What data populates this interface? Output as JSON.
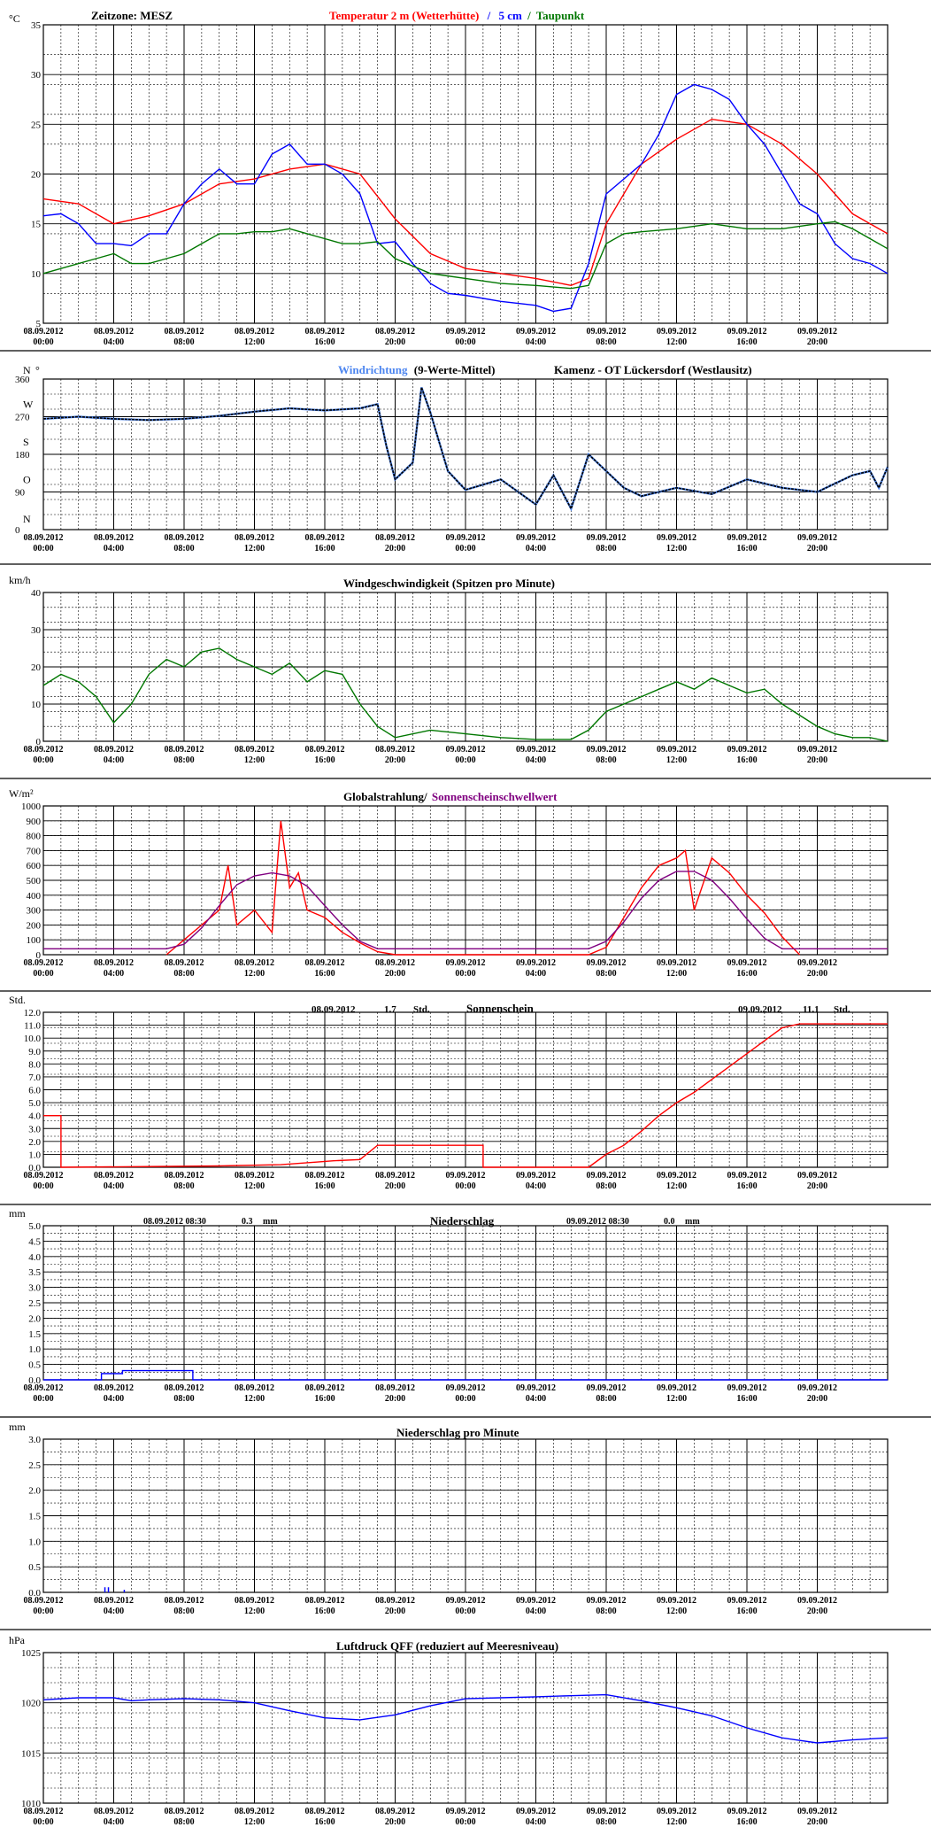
{
  "x_ticks": [
    {
      "date": "08.09.2012",
      "time": "00:00"
    },
    {
      "date": "08.09.2012",
      "time": "04:00"
    },
    {
      "date": "08.09.2012",
      "time": "08:00"
    },
    {
      "date": "08.09.2012",
      "time": "12:00"
    },
    {
      "date": "08.09.2012",
      "time": "16:00"
    },
    {
      "date": "08.09.2012",
      "time": "20:00"
    },
    {
      "date": "09.09.2012",
      "time": "00:00"
    },
    {
      "date": "09.09.2012",
      "time": "04:00"
    },
    {
      "date": "09.09.2012",
      "time": "08:00"
    },
    {
      "date": "09.09.2012",
      "time": "12:00"
    },
    {
      "date": "09.09.2012",
      "time": "16:00"
    },
    {
      "date": "09.09.2012",
      "time": "20:00"
    }
  ],
  "colors": {
    "red": "#ff0000",
    "blue": "#0000ff",
    "lightblue": "#4d86f0",
    "green": "#007700",
    "purple": "#800080",
    "black": "#000000",
    "grid": "#000000"
  },
  "header": {
    "zeitzone": "Zeitzone: MESZ",
    "title_red": "Temperatur 2 m (Wetterhütte)",
    "sep1": "/",
    "title_blue": "5 cm",
    "sep2": "/",
    "title_green": "Taupunkt",
    "wind_dir_title": "Windrichtung",
    "wind_dir_suffix": "(9-Werte-Mittel)",
    "station": "Kamenz - OT Lückersdorf (Westlausitz)",
    "wind_speed_title": "Windgeschwindigkeit (Spitzen pro Minute)",
    "radiation_title": "Globalstrahlung/",
    "radiation_title2": "Sonnenscheinschwellwert",
    "sun_title": "Sonnenschein",
    "sun_day1_date": "08.09.2012",
    "sun_day1_value": "1.7",
    "sun_day1_unit": "Std.",
    "sun_day2_date": "09.09.2012",
    "sun_day2_value": "11.1",
    "sun_day2_unit": "Std.",
    "precip_title": "Niederschlag",
    "precip_day1_label": "08.09.2012 08:30",
    "precip_day1_value": "0.3",
    "precip_day1_unit": "mm",
    "precip_day2_label": "09.09.2012 08:30",
    "precip_day2_value": "0.0",
    "precip_day2_unit": "mm",
    "precip_min_title": "Niederschlag pro Minute",
    "pressure_title": "Luftdruck QFF (reduziert auf Meeresniveau)"
  },
  "chart_data": [
    {
      "id": "temperature",
      "type": "line",
      "ylabel": "°C",
      "ylim": [
        5,
        35
      ],
      "yticks": [
        5,
        10,
        15,
        20,
        25,
        30,
        35
      ],
      "x_unit": "hours since 08.09.2012 00:00",
      "series": [
        {
          "name": "Temperatur 2 m (Wetterhütte)",
          "color": "red",
          "x": [
            0,
            2,
            4,
            6,
            8,
            10,
            12,
            14,
            16,
            18,
            20,
            22,
            24,
            26,
            28,
            30,
            31,
            32,
            34,
            36,
            38,
            40,
            42,
            44,
            46,
            48
          ],
          "y": [
            17.5,
            17,
            15,
            15.8,
            17,
            19,
            19.5,
            20.5,
            21,
            20,
            15.5,
            12,
            10.5,
            10,
            9.5,
            8.8,
            9.5,
            15,
            21,
            23.5,
            25.5,
            25,
            23,
            20,
            16,
            14
          ]
        },
        {
          "name": "5 cm",
          "color": "blue",
          "x": [
            0,
            1,
            2,
            3,
            4,
            5,
            6,
            7,
            8,
            9,
            10,
            11,
            12,
            13,
            14,
            15,
            16,
            17,
            18,
            19,
            20,
            21,
            22,
            23,
            24,
            26,
            28,
            29,
            30,
            31,
            32,
            33,
            34,
            35,
            36,
            37,
            38,
            39,
            40,
            41,
            42,
            43,
            44,
            45,
            46,
            47,
            48
          ],
          "y": [
            15.8,
            16,
            15,
            13,
            13,
            12.8,
            14,
            14,
            17,
            19,
            20.5,
            19,
            19,
            22,
            23,
            21,
            21,
            20,
            18,
            13,
            13.2,
            11,
            9,
            8,
            7.8,
            7.2,
            6.8,
            6.2,
            6.5,
            11,
            18,
            19.5,
            21,
            24,
            28,
            29,
            28.5,
            27.5,
            25,
            23,
            20,
            17,
            16,
            13,
            11.5,
            11,
            10
          ]
        },
        {
          "name": "Taupunkt",
          "color": "green",
          "x": [
            0,
            1,
            2,
            3,
            4,
            5,
            6,
            7,
            8,
            9,
            10,
            11,
            12,
            13,
            14,
            15,
            16,
            17,
            18,
            19,
            20,
            22,
            24,
            26,
            28,
            30,
            31,
            32,
            33,
            34,
            36,
            38,
            40,
            42,
            44,
            45,
            46,
            47,
            48
          ],
          "y": [
            10,
            10.5,
            11,
            11.5,
            12,
            11,
            11,
            11.5,
            12,
            13,
            14,
            14,
            14.2,
            14.2,
            14.5,
            14,
            13.5,
            13,
            13,
            13.2,
            11.5,
            10,
            9.5,
            9,
            8.8,
            8.5,
            8.8,
            13,
            14,
            14.2,
            14.5,
            15,
            14.5,
            14.5,
            15,
            15.2,
            14.5,
            13.5,
            12.5
          ]
        }
      ]
    },
    {
      "id": "wind_direction",
      "type": "scatter",
      "ylim": [
        0,
        360
      ],
      "ytick_labels": [
        {
          "v": 360,
          "t": "360"
        },
        {
          "v": 270,
          "t": "270"
        },
        {
          "v": 180,
          "t": "180"
        },
        {
          "v": 90,
          "t": "90"
        },
        {
          "v": 0,
          "t": "0"
        }
      ],
      "direction_labels": [
        {
          "v": 360,
          "t": "N"
        },
        {
          "v": 360,
          "t": "°"
        },
        {
          "v": 300,
          "t": "W"
        },
        {
          "v": 210,
          "t": "S"
        },
        {
          "v": 120,
          "t": "O"
        },
        {
          "v": 25,
          "t": "N"
        }
      ],
      "series": [
        {
          "name": "Windrichtung",
          "color": "lightblue",
          "x": [
            0,
            2,
            4,
            6,
            8,
            10,
            12,
            14,
            16,
            18,
            19,
            19.5,
            20,
            21,
            21.5,
            22,
            23,
            24,
            26,
            28,
            29,
            30,
            31,
            32,
            33,
            34,
            36,
            38,
            40,
            42,
            44,
            46,
            47,
            47.5,
            48
          ],
          "y": [
            265,
            270,
            265,
            262,
            265,
            272,
            282,
            290,
            285,
            290,
            300,
            200,
            120,
            160,
            340,
            280,
            140,
            95,
            120,
            60,
            130,
            50,
            180,
            140,
            100,
            80,
            100,
            85,
            120,
            100,
            90,
            130,
            140,
            100,
            150
          ]
        },
        {
          "name": "9-Werte-Mittel",
          "color": "black",
          "x": [
            0,
            2,
            4,
            6,
            8,
            10,
            12,
            14,
            16,
            18,
            19,
            19.5,
            20,
            21,
            21.5,
            22,
            23,
            24,
            26,
            28,
            29,
            30,
            31,
            32,
            33,
            34,
            36,
            38,
            40,
            42,
            44,
            46,
            47,
            47.5,
            48
          ],
          "y": [
            265,
            270,
            265,
            262,
            265,
            272,
            282,
            290,
            285,
            290,
            300,
            200,
            120,
            160,
            340,
            280,
            140,
            95,
            120,
            60,
            130,
            50,
            180,
            140,
            100,
            80,
            100,
            85,
            120,
            100,
            90,
            130,
            140,
            100,
            150
          ]
        }
      ]
    },
    {
      "id": "wind_speed",
      "type": "line",
      "ylabel": "km/h",
      "ylim": [
        0,
        40
      ],
      "yticks": [
        0,
        10,
        20,
        30,
        40
      ],
      "series": [
        {
          "name": "Windgeschwindigkeit",
          "color": "green",
          "x": [
            0,
            1,
            2,
            3,
            4,
            5,
            6,
            7,
            8,
            9,
            10,
            11,
            12,
            13,
            14,
            15,
            16,
            17,
            18,
            19,
            20,
            22,
            24,
            26,
            28,
            30,
            31,
            32,
            33,
            34,
            35,
            36,
            37,
            38,
            39,
            40,
            41,
            42,
            43,
            44,
            45,
            46,
            47,
            48
          ],
          "y": [
            15,
            18,
            16,
            12,
            5,
            10,
            18,
            22,
            20,
            24,
            25,
            22,
            20,
            18,
            21,
            16,
            19,
            18,
            10,
            4,
            1,
            3,
            2,
            1,
            0.5,
            0.5,
            3,
            8,
            10,
            12,
            14,
            16,
            14,
            17,
            15,
            13,
            14,
            10,
            7,
            4,
            2,
            1,
            1,
            0
          ]
        }
      ]
    },
    {
      "id": "radiation",
      "type": "line",
      "ylabel": "W/m²",
      "ylim": [
        0,
        1000
      ],
      "yticks": [
        0,
        100,
        200,
        300,
        400,
        500,
        600,
        700,
        800,
        900,
        1000
      ],
      "series": [
        {
          "name": "Globalstrahlung",
          "color": "red",
          "x": [
            7,
            8,
            9,
            10,
            10.5,
            11,
            12,
            13,
            13.5,
            14,
            14.5,
            15,
            16,
            17,
            18,
            19,
            20,
            31,
            32,
            33,
            34,
            35,
            36,
            36.5,
            37,
            38,
            39,
            40,
            41,
            42,
            43
          ],
          "y": [
            0,
            100,
            200,
            300,
            600,
            200,
            300,
            150,
            900,
            450,
            550,
            300,
            250,
            150,
            80,
            20,
            0,
            0,
            50,
            250,
            450,
            600,
            650,
            700,
            300,
            650,
            550,
            400,
            280,
            120,
            0
          ]
        },
        {
          "name": "Sonnenscheinschwellwert",
          "color": "purple",
          "x": [
            0,
            7,
            8,
            9,
            10,
            11,
            12,
            13,
            14,
            15,
            16,
            17,
            18,
            19,
            20,
            31,
            32,
            33,
            34,
            35,
            36,
            37,
            38,
            39,
            40,
            41,
            42,
            43,
            44,
            48
          ],
          "y": [
            40,
            40,
            70,
            180,
            330,
            470,
            530,
            550,
            530,
            460,
            330,
            200,
            90,
            40,
            40,
            40,
            90,
            220,
            380,
            500,
            560,
            560,
            500,
            380,
            240,
            110,
            40,
            40,
            40,
            40
          ]
        }
      ]
    },
    {
      "id": "sunshine",
      "type": "line",
      "ylabel": "Std.",
      "ylim": [
        0,
        12
      ],
      "yticks": [
        0,
        1,
        2,
        3,
        4,
        5,
        6,
        7,
        8,
        9,
        10,
        11,
        12
      ],
      "series": [
        {
          "name": "Sonnenschein",
          "color": "red",
          "x": [
            0,
            1,
            1,
            10,
            13.5,
            15.5,
            16.5,
            18,
            19,
            22,
            25,
            25,
            31,
            32,
            33,
            34,
            35,
            36,
            37,
            38,
            39,
            40,
            41,
            42,
            43,
            43.5,
            48
          ],
          "y": [
            4,
            4,
            0,
            0.1,
            0.2,
            0.4,
            0.5,
            0.6,
            1.7,
            1.7,
            1.7,
            0,
            0,
            1.0,
            1.7,
            2.8,
            4.0,
            5.0,
            5.8,
            6.8,
            7.8,
            8.8,
            9.8,
            10.8,
            11.1,
            11.1,
            11.1
          ]
        }
      ]
    },
    {
      "id": "precipitation",
      "type": "line",
      "ylabel": "mm",
      "ylim": [
        0,
        5
      ],
      "yticks": [
        0,
        0.5,
        1,
        1.5,
        2,
        2.5,
        3,
        3.5,
        4,
        4.5,
        5
      ],
      "series": [
        {
          "name": "Niederschlag",
          "color": "blue",
          "x": [
            0,
            3.3,
            3.3,
            4.5,
            4.5,
            8.5,
            8.5,
            48
          ],
          "y": [
            0,
            0,
            0.2,
            0.2,
            0.3,
            0.3,
            0,
            0
          ]
        }
      ]
    },
    {
      "id": "precipitation_per_minute",
      "type": "bar",
      "ylabel": "mm",
      "ylim": [
        0,
        3
      ],
      "yticks": [
        0,
        0.5,
        1,
        1.5,
        2,
        2.5,
        3
      ],
      "series": [
        {
          "name": "Niederschlag pro Minute",
          "color": "blue",
          "x": [
            3.5,
            3.7,
            4.6
          ],
          "y": [
            0.1,
            0.1,
            0.05
          ]
        }
      ]
    },
    {
      "id": "pressure",
      "type": "line",
      "ylabel": "hPa",
      "ylim": [
        1010,
        1025
      ],
      "yticks": [
        1010,
        1015,
        1020,
        1025
      ],
      "series": [
        {
          "name": "Luftdruck QFF",
          "color": "blue",
          "x": [
            0,
            2,
            4,
            5,
            6,
            8,
            10,
            12,
            14,
            16,
            18,
            20,
            22,
            24,
            26,
            28,
            30,
            32,
            34,
            36,
            38,
            40,
            42,
            44,
            46,
            48
          ],
          "y": [
            1020.3,
            1020.5,
            1020.5,
            1020.2,
            1020.3,
            1020.4,
            1020.3,
            1020.0,
            1019.2,
            1018.5,
            1018.3,
            1018.8,
            1019.7,
            1020.4,
            1020.5,
            1020.6,
            1020.7,
            1020.8,
            1020.2,
            1019.5,
            1018.7,
            1017.5,
            1016.5,
            1016.0,
            1016.3,
            1016.5
          ]
        }
      ]
    }
  ]
}
